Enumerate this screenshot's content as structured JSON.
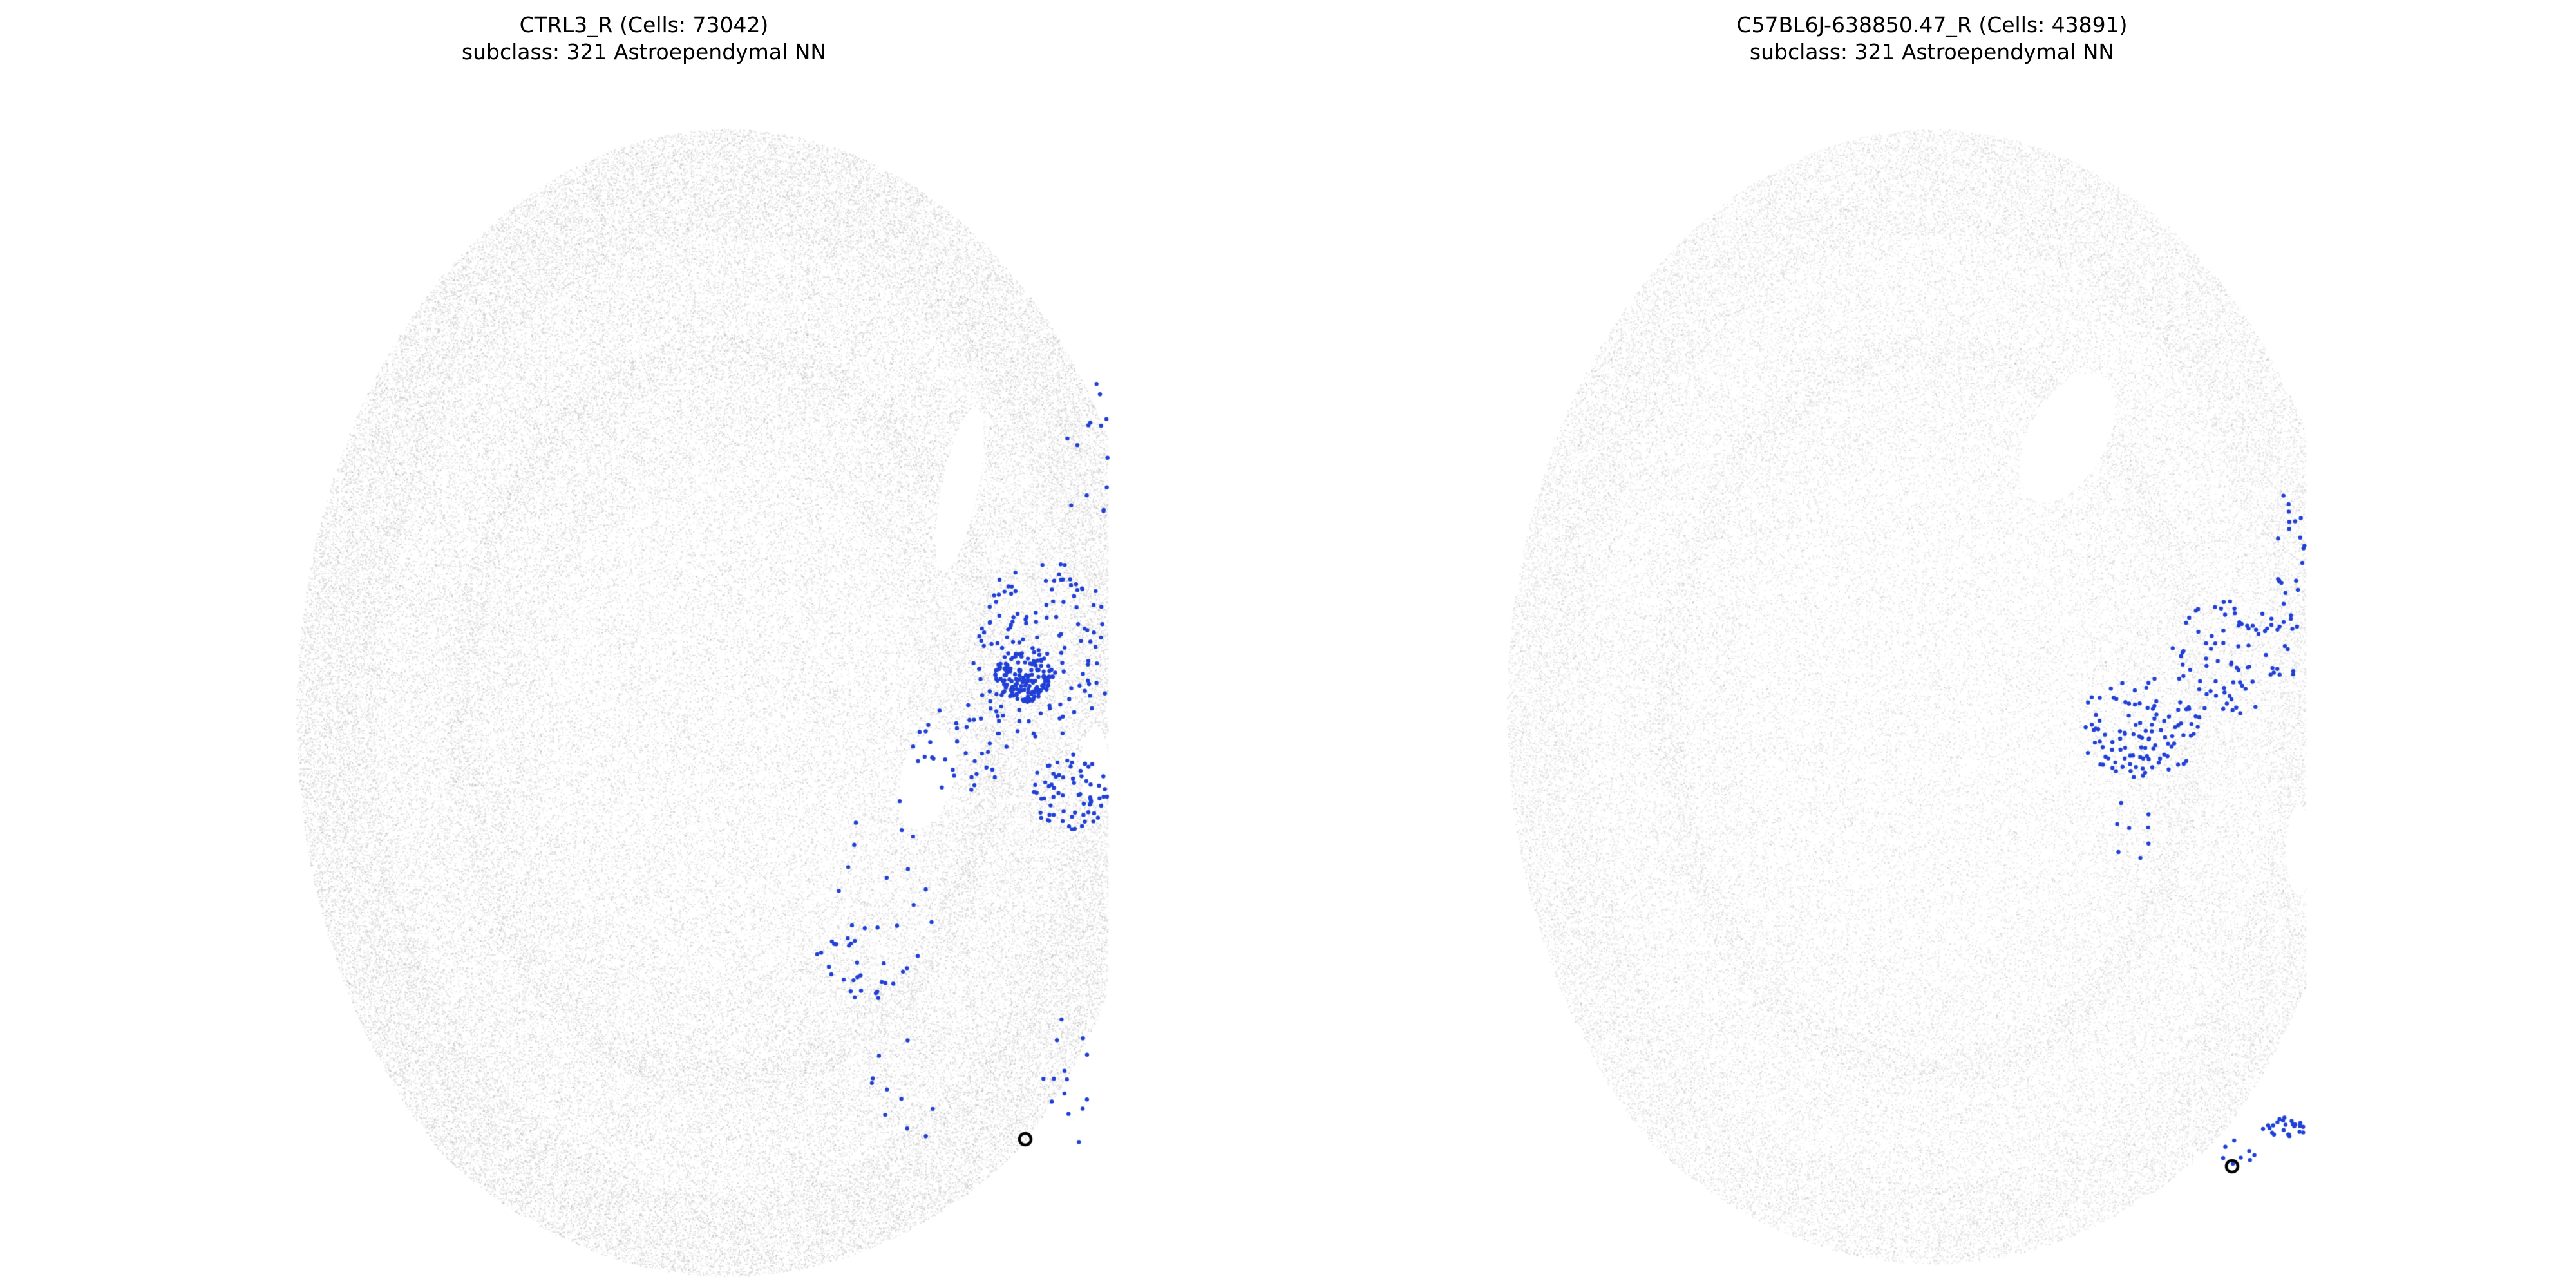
{
  "panels": [
    {
      "title_line1": "CTRL3_R (Cells: 73042)",
      "title_line2": "subclass: 321 Astroependymal NN",
      "background_color": "#b4b4b4",
      "highlight_color": "#1f3fd6",
      "marker_color": "#000000"
    },
    {
      "title_line1": "C57BL6J-638850.47_R (Cells: 43891)",
      "title_line2": "subclass: 321 Astroependymal NN",
      "background_color": "#b4b4b4",
      "highlight_color": "#1f3fd6",
      "marker_color": "#000000"
    }
  ]
}
